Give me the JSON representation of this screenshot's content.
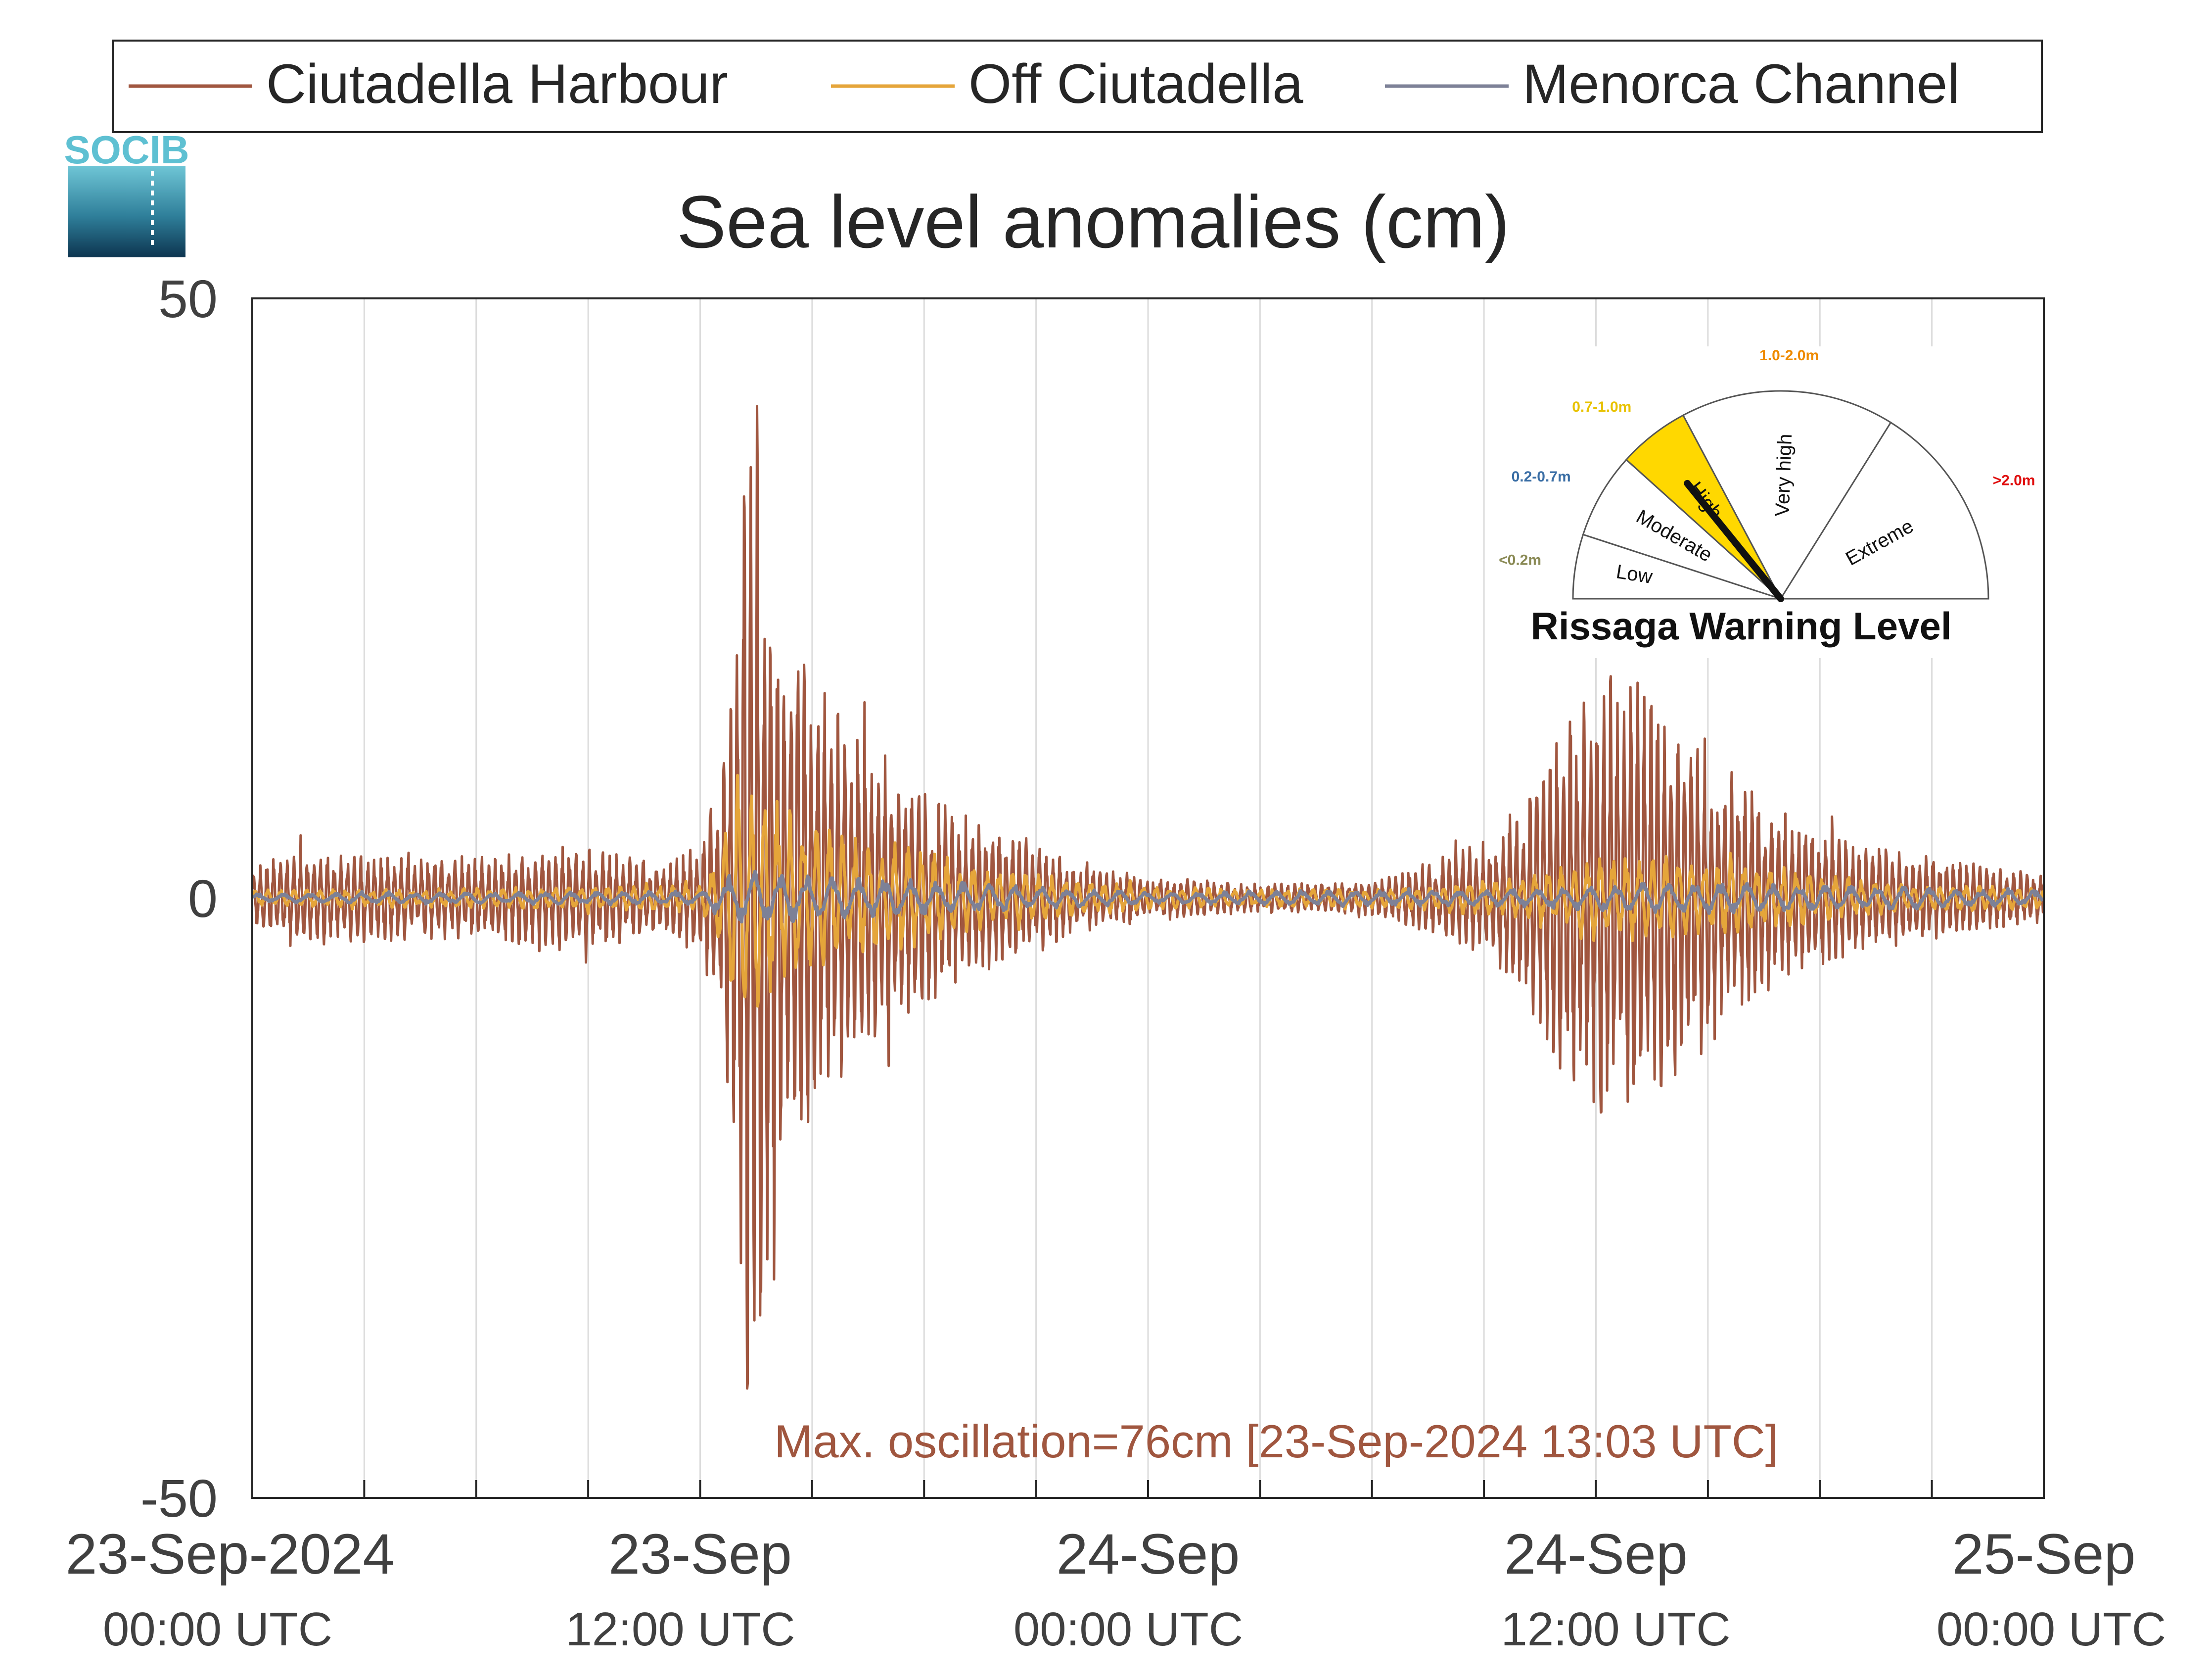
{
  "chart_data": {
    "type": "line",
    "title": "Sea level anomalies (cm)",
    "xlabel": "",
    "ylabel": "",
    "ylim": [
      -50,
      50
    ],
    "xlim": [
      "2024-09-23T00:00Z",
      "2024-09-25T00:00Z"
    ],
    "grid": "vertical lines every 3 hours",
    "legend_position": "top, above plot",
    "yticks": [
      "50",
      "0",
      "-50"
    ],
    "xticks": [
      {
        "line1": "23-Sep-2024",
        "line2": "00:00 UTC"
      },
      {
        "line1": "23-Sep",
        "line2": "12:00 UTC"
      },
      {
        "line1": "24-Sep",
        "line2": "00:00 UTC"
      },
      {
        "line1": "24-Sep",
        "line2": "12:00 UTC"
      },
      {
        "line1": "25-Sep",
        "line2": "00:00 UTC"
      }
    ],
    "series": [
      {
        "name": "Ciutadella Harbour",
        "color": "#a0563f",
        "envelope": {
          "time_hours": [
            0,
            1,
            3,
            6,
            9,
            10,
            11,
            12,
            12.5,
            13,
            13.2,
            14,
            15,
            16,
            17,
            18,
            19,
            20,
            21,
            22,
            24,
            27,
            30,
            32,
            33,
            34,
            35,
            36,
            37,
            38,
            39,
            40,
            41,
            42,
            43,
            44,
            45,
            46,
            47,
            48
          ],
          "amplitude_cm": [
            2,
            3.5,
            3,
            3,
            3.5,
            3,
            2.5,
            4,
            8,
            20,
            38,
            22,
            16,
            12,
            10,
            8,
            6,
            5,
            4,
            2.5,
            1.5,
            1,
            1.2,
            3,
            4,
            7,
            12,
            16,
            17,
            14,
            11,
            8,
            6,
            5,
            4,
            3.5,
            3,
            2.5,
            2,
            2
          ]
        }
      },
      {
        "name": "Off Ciutadella",
        "color": "#e5a53a",
        "envelope": {
          "time_hours": [
            0,
            6,
            12,
            12.5,
            13,
            14,
            15,
            17,
            20,
            24,
            30,
            34,
            36,
            38,
            40,
            44,
            48
          ],
          "amplitude_cm": [
            0.6,
            0.7,
            1,
            3,
            9,
            7,
            5,
            4,
            2,
            0.8,
            0.6,
            1.5,
            3,
            3,
            2.5,
            1,
            0.8
          ]
        }
      },
      {
        "name": "Menorca Channel",
        "color": "#7d8197",
        "envelope": {
          "time_hours": [
            0,
            12,
            13,
            16,
            20,
            24,
            34,
            38,
            44,
            48
          ],
          "amplitude_cm": [
            0.3,
            0.5,
            2,
            1.5,
            1,
            0.4,
            0.6,
            1.2,
            0.8,
            0.5
          ]
        }
      }
    ],
    "annotation": "Max. oscillation=76cm [23-Sep-2024 13:03 UTC]",
    "annotation_color": "#a0563f"
  },
  "logo": {
    "text": "SOCIB"
  },
  "gauge": {
    "title": "Rissaga Warning Level",
    "active_level": "High",
    "needle_angle_deg": 129,
    "sectors": [
      {
        "name": "Low",
        "range": "<0.2m",
        "range_color": "#8a8a55",
        "fill": "#ffffff"
      },
      {
        "name": "Moderate",
        "range": "0.2-0.7m",
        "range_color": "#3a6ea5",
        "fill": "#ffffff"
      },
      {
        "name": "High",
        "range": "0.7-1.0m",
        "range_color": "#e8c200",
        "fill": "#ffd800"
      },
      {
        "name": "Very high",
        "range": "1.0-2.0m",
        "range_color": "#ee8a00",
        "fill": "#ffffff"
      },
      {
        "name": "Extreme",
        "range": ">2.0m",
        "range_color": "#e01010",
        "fill": "#ffffff"
      }
    ]
  }
}
